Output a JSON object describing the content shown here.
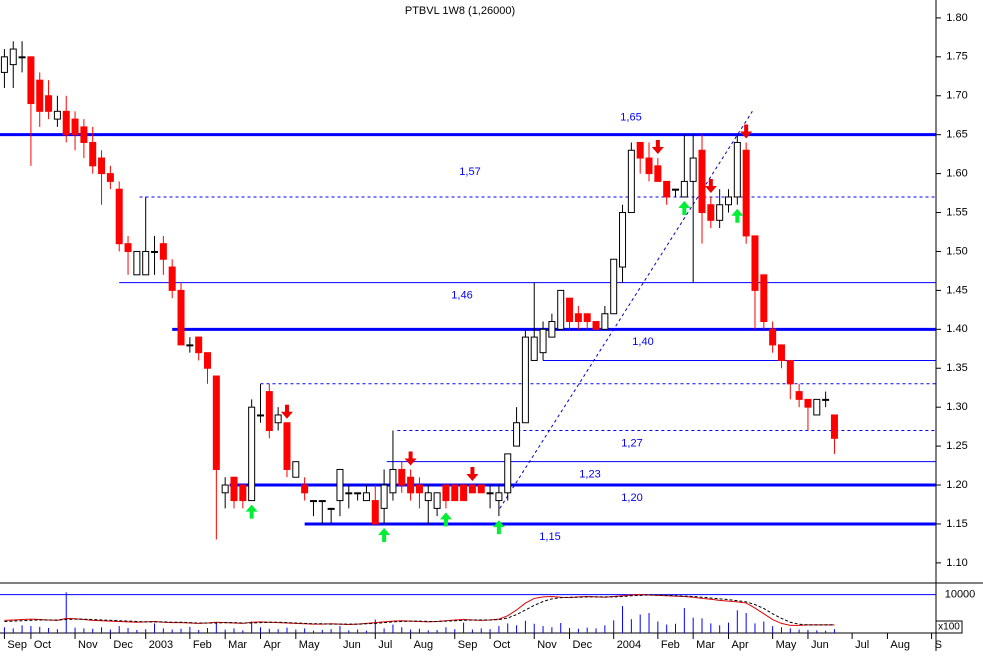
{
  "chart_data": {
    "type": "candlestick",
    "title": "PTBVL 1W8 (1,26000)",
    "up_color": "#ffffff",
    "down_color": "#ff0000",
    "xlim": [
      -0.5,
      105.5
    ],
    "xticks": [
      {
        "value": 0,
        "label": "Sep"
      },
      {
        "value": 3,
        "label": "Oct"
      },
      {
        "value": 8,
        "label": "Nov"
      },
      {
        "value": 12,
        "label": "Dec"
      },
      {
        "value": 16,
        "label": "2003"
      },
      {
        "value": 21,
        "label": "Feb"
      },
      {
        "value": 25,
        "label": "Mar"
      },
      {
        "value": 29,
        "label": "Apr"
      },
      {
        "value": 33,
        "label": "May"
      },
      {
        "value": 38,
        "label": "Jun"
      },
      {
        "value": 42,
        "label": "Jul"
      },
      {
        "value": 46,
        "label": "Aug"
      },
      {
        "value": 51,
        "label": "Sep"
      },
      {
        "value": 55,
        "label": "Oct"
      },
      {
        "value": 60,
        "label": "Nov"
      },
      {
        "value": 64,
        "label": "Dec"
      },
      {
        "value": 69,
        "label": "2004"
      },
      {
        "value": 74,
        "label": "Feb"
      },
      {
        "value": 78,
        "label": "Mar"
      },
      {
        "value": 82,
        "label": "Apr"
      },
      {
        "value": 87,
        "label": "May"
      },
      {
        "value": 91,
        "label": "Jun"
      },
      {
        "value": 96,
        "label": "Jul"
      },
      {
        "value": 100,
        "label": "Aug"
      },
      {
        "value": 105,
        "label": "S"
      }
    ],
    "ylim": [
      1.078,
      1.823
    ],
    "yticks": [
      {
        "value": 1.1,
        "label": "1.10"
      },
      {
        "value": 1.15,
        "label": "1.15"
      },
      {
        "value": 1.2,
        "label": "1.20"
      },
      {
        "value": 1.25,
        "label": "1.25"
      },
      {
        "value": 1.3,
        "label": "1.30"
      },
      {
        "value": 1.35,
        "label": "1.35"
      },
      {
        "value": 1.4,
        "label": "1.40"
      },
      {
        "value": 1.45,
        "label": "1.45"
      },
      {
        "value": 1.5,
        "label": "1.50"
      },
      {
        "value": 1.55,
        "label": "1.55"
      },
      {
        "value": 1.6,
        "label": "1.60"
      },
      {
        "value": 1.65,
        "label": "1.65"
      },
      {
        "value": 1.7,
        "label": "1.70"
      },
      {
        "value": 1.75,
        "label": "1.75"
      },
      {
        "value": 1.8,
        "label": "1.80"
      }
    ],
    "open": [
      1.73,
      1.74,
      1.75,
      1.75,
      1.72,
      1.7,
      1.67,
      1.68,
      1.67,
      1.66,
      1.64,
      1.62,
      1.6,
      1.58,
      1.51,
      1.47,
      1.47,
      1.5,
      1.51,
      1.48,
      1.45,
      1.38,
      1.39,
      1.37,
      1.34,
      1.19,
      1.21,
      1.2,
      1.18,
      1.29,
      1.32,
      1.28,
      1.28,
      1.21,
      1.2,
      1.18,
      1.18,
      1.17,
      1.18,
      1.19,
      1.19,
      1.18,
      1.18,
      1.17,
      1.19,
      1.22,
      1.21,
      1.2,
      1.18,
      1.17,
      1.2,
      1.2,
      1.2,
      1.2,
      1.2,
      1.19,
      1.18,
      1.19,
      1.25,
      1.28,
      1.36,
      1.37,
      1.39,
      1.4,
      1.44,
      1.42,
      1.42,
      1.41,
      1.4,
      1.42,
      1.48,
      1.55,
      1.64,
      1.62,
      1.61,
      1.59,
      1.58,
      1.57,
      1.59,
      1.63,
      1.56,
      1.54,
      1.56,
      1.57,
      1.63,
      1.52,
      1.47,
      1.4,
      1.38,
      1.36,
      1.32,
      1.31,
      1.29,
      1.31,
      1.29
    ],
    "high": [
      1.76,
      1.77,
      1.77,
      1.75,
      1.73,
      1.72,
      1.7,
      1.7,
      1.68,
      1.67,
      1.66,
      1.63,
      1.61,
      1.59,
      1.52,
      1.5,
      1.57,
      1.52,
      1.52,
      1.49,
      1.46,
      1.39,
      1.39,
      1.37,
      1.34,
      1.21,
      1.21,
      1.2,
      1.31,
      1.33,
      1.33,
      1.3,
      1.28,
      1.23,
      1.21,
      1.18,
      1.18,
      1.17,
      1.22,
      1.2,
      1.19,
      1.2,
      1.2,
      1.22,
      1.27,
      1.23,
      1.22,
      1.21,
      1.2,
      1.19,
      1.2,
      1.2,
      1.2,
      1.2,
      1.2,
      1.2,
      1.2,
      1.24,
      1.3,
      1.4,
      1.46,
      1.41,
      1.42,
      1.45,
      1.44,
      1.43,
      1.42,
      1.41,
      1.43,
      1.49,
      1.56,
      1.64,
      1.64,
      1.64,
      1.62,
      1.59,
      1.58,
      1.65,
      1.65,
      1.65,
      1.57,
      1.58,
      1.58,
      1.65,
      1.64,
      1.52,
      1.47,
      1.41,
      1.38,
      1.36,
      1.33,
      1.31,
      1.31,
      1.32,
      1.29
    ],
    "low": [
      1.71,
      1.71,
      1.73,
      1.61,
      1.66,
      1.67,
      1.66,
      1.64,
      1.63,
      1.62,
      1.6,
      1.56,
      1.58,
      1.5,
      1.47,
      1.47,
      1.47,
      1.47,
      1.47,
      1.44,
      1.38,
      1.37,
      1.36,
      1.33,
      1.13,
      1.17,
      1.17,
      1.17,
      1.18,
      1.28,
      1.26,
      1.27,
      1.21,
      1.21,
      1.18,
      1.16,
      1.15,
      1.15,
      1.16,
      1.17,
      1.18,
      1.18,
      1.15,
      1.15,
      1.18,
      1.19,
      1.18,
      1.17,
      1.15,
      1.16,
      1.17,
      1.18,
      1.18,
      1.19,
      1.19,
      1.17,
      1.16,
      1.18,
      1.25,
      1.28,
      1.36,
      1.36,
      1.39,
      1.4,
      1.4,
      1.4,
      1.4,
      1.4,
      1.4,
      1.42,
      1.46,
      1.55,
      1.6,
      1.59,
      1.59,
      1.56,
      1.57,
      1.57,
      1.46,
      1.51,
      1.53,
      1.53,
      1.55,
      1.56,
      1.51,
      1.4,
      1.4,
      1.37,
      1.35,
      1.31,
      1.3,
      1.27,
      1.29,
      1.3,
      1.24
    ],
    "close": [
      1.75,
      1.76,
      1.75,
      1.69,
      1.68,
      1.68,
      1.68,
      1.65,
      1.65,
      1.64,
      1.61,
      1.6,
      1.59,
      1.51,
      1.5,
      1.5,
      1.5,
      1.5,
      1.49,
      1.45,
      1.38,
      1.38,
      1.37,
      1.35,
      1.22,
      1.2,
      1.18,
      1.18,
      1.3,
      1.29,
      1.27,
      1.29,
      1.22,
      1.23,
      1.19,
      1.18,
      1.18,
      1.17,
      1.22,
      1.19,
      1.19,
      1.19,
      1.15,
      1.2,
      1.22,
      1.2,
      1.19,
      1.19,
      1.19,
      1.19,
      1.18,
      1.18,
      1.18,
      1.19,
      1.19,
      1.19,
      1.19,
      1.24,
      1.28,
      1.39,
      1.39,
      1.4,
      1.41,
      1.45,
      1.41,
      1.41,
      1.41,
      1.4,
      1.42,
      1.49,
      1.55,
      1.63,
      1.62,
      1.6,
      1.59,
      1.57,
      1.58,
      1.59,
      1.62,
      1.55,
      1.54,
      1.56,
      1.57,
      1.64,
      1.52,
      1.45,
      1.41,
      1.38,
      1.36,
      1.33,
      1.31,
      1.3,
      1.31,
      1.31,
      1.26
    ],
    "level_color": "#0000ff",
    "levels": [
      {
        "value": 1.65,
        "label": "1,65",
        "style": "thick",
        "start": -0.5
      },
      {
        "value": 1.57,
        "label": "1,57",
        "style": "dashed",
        "start": 15.3
      },
      {
        "value": 1.46,
        "label": "1,46",
        "style": "thin",
        "start": 13
      },
      {
        "value": 1.4,
        "label": "1,40",
        "style": "thick",
        "start": 19
      },
      {
        "value": 1.36,
        "style": "thin",
        "start": 61
      },
      {
        "value": 1.33,
        "style": "dashed",
        "start": 29
      },
      {
        "value": 1.27,
        "label": "1,27",
        "style": "dashed",
        "start": 44.5
      },
      {
        "value": 1.23,
        "label": "1,23",
        "style": "thin",
        "start": 43.3
      },
      {
        "value": 1.2,
        "label": "1,20",
        "style": "thick",
        "start": 25.5
      },
      {
        "value": 1.15,
        "label": "1,15",
        "style": "thick",
        "start": 34
      }
    ],
    "trendline": {
      "x": [
        56.1,
        84.7
      ],
      "y": [
        1.17,
        1.68
      ],
      "color": "#0000cc"
    },
    "buy_color": "#00ee33",
    "sell_color": "#ee0000",
    "buy_signals": [
      28,
      43,
      50,
      56,
      77,
      83
    ],
    "sell_signals": [
      32,
      46,
      53,
      74,
      80,
      84
    ],
    "volume": {
      "color": "#0000ff",
      "unit_label": "x100",
      "ylim": [
        0,
        12500
      ],
      "yticks": [
        10000
      ],
      "values": [
        1500,
        1200,
        2000,
        1800,
        1600,
        1300,
        1000,
        10600,
        1400,
        1200,
        1100,
        1500,
        900,
        1800,
        1300,
        800,
        1000,
        2500,
        1200,
        900,
        1100,
        1600,
        800,
        1300,
        2800,
        900,
        1200,
        700,
        3000,
        1500,
        1100,
        1000,
        1400,
        900,
        1200,
        600,
        800,
        1000,
        1800,
        700,
        900,
        600,
        3500,
        1200,
        2200,
        1500,
        900,
        1100,
        700,
        800,
        1500,
        1000,
        2700,
        900,
        1200,
        1000,
        1800,
        2500,
        2000,
        3200,
        2400,
        1800,
        1500,
        2600,
        1300,
        1100,
        1400,
        1200,
        2000,
        3300,
        7000,
        3600,
        4800,
        5200,
        3000,
        2200,
        2400,
        6500,
        4000,
        3800,
        2500,
        2000,
        2700,
        5900,
        5200,
        2500,
        3000,
        1800,
        1500,
        1200,
        900,
        800,
        700,
        600,
        1000
      ],
      "averages": [
        {
          "color": "#dd0000",
          "dashed": false,
          "values": [
            3300,
            3400,
            3500,
            3600,
            3500,
            3400,
            3300,
            3800,
            3700,
            3500,
            3300,
            3200,
            3100,
            3000,
            2900,
            2800,
            2900,
            3000,
            2800,
            2700,
            2700,
            2600,
            2500,
            2600,
            2800,
            2700,
            2600,
            2500,
            2800,
            2900,
            2800,
            2700,
            2600,
            2500,
            2400,
            2300,
            2300,
            2400,
            2300,
            2200,
            2300,
            2500,
            2700,
            2900,
            3100,
            3200,
            3100,
            3000,
            2900,
            3000,
            3200,
            3400,
            3500,
            3400,
            3300,
            3400,
            3600,
            4500,
            6000,
            7800,
            9000,
            9400,
            9500,
            9300,
            9200,
            9400,
            9500,
            9400,
            9300,
            9500,
            9700,
            9900,
            10000,
            9900,
            9800,
            9700,
            9600,
            9500,
            9300,
            9000,
            8800,
            8500,
            8300,
            8100,
            7800,
            6500,
            5000,
            3500,
            2500,
            2000,
            2000,
            2100,
            2100,
            2100,
            2100
          ]
        },
        {
          "color": "#000000",
          "dashed": true,
          "values": [
            3000,
            3100,
            3200,
            3300,
            3400,
            3400,
            3400,
            3500,
            3600,
            3600,
            3500,
            3400,
            3300,
            3200,
            3100,
            3000,
            2900,
            2900,
            2900,
            2800,
            2800,
            2700,
            2600,
            2600,
            2600,
            2700,
            2700,
            2600,
            2600,
            2700,
            2800,
            2800,
            2700,
            2600,
            2500,
            2400,
            2400,
            2300,
            2300,
            2300,
            2300,
            2400,
            2500,
            2700,
            2900,
            3000,
            3100,
            3100,
            3000,
            3000,
            3100,
            3200,
            3300,
            3400,
            3400,
            3400,
            3500,
            3900,
            4800,
            6000,
            7200,
            8200,
            8900,
            9200,
            9300,
            9300,
            9400,
            9400,
            9400,
            9400,
            9500,
            9700,
            9800,
            9900,
            9900,
            9800,
            9700,
            9600,
            9500,
            9300,
            9100,
            8900,
            8700,
            8400,
            8100,
            7400,
            6400,
            5000,
            3800,
            2800,
            2300,
            2100,
            2100,
            2100,
            2100
          ]
        }
      ]
    }
  }
}
